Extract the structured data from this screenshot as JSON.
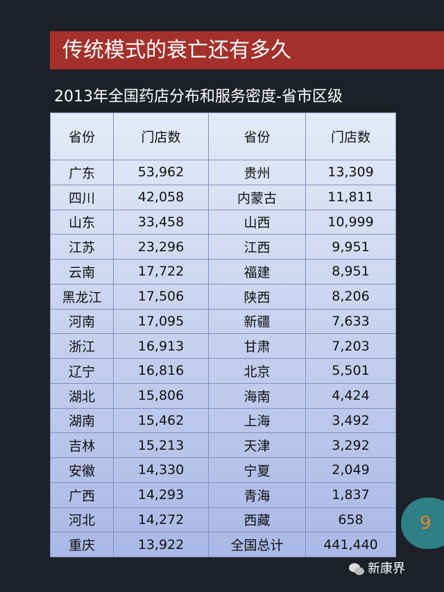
{
  "header": {
    "title": "传统模式的衰亡还有多久",
    "subtitle": "2013年全国药店分布和服务密度-省市区级"
  },
  "table": {
    "columns": [
      "省份",
      "门店数",
      "省份",
      "门店数"
    ],
    "rows": [
      [
        "广东",
        "53,962",
        "贵州",
        "13,309"
      ],
      [
        "四川",
        "42,058",
        "内蒙古",
        "11,811"
      ],
      [
        "山东",
        "33,458",
        "山西",
        "10,999"
      ],
      [
        "江苏",
        "23,296",
        "江西",
        "9,951"
      ],
      [
        "云南",
        "17,722",
        "福建",
        "8,951"
      ],
      [
        "黑龙江",
        "17,506",
        "陕西",
        "8,206"
      ],
      [
        "河南",
        "17,095",
        "新疆",
        "7,633"
      ],
      [
        "浙江",
        "16,913",
        "甘肃",
        "7,203"
      ],
      [
        "辽宁",
        "16,816",
        "北京",
        "5,501"
      ],
      [
        "湖北",
        "15,806",
        "海南",
        "4,424"
      ],
      [
        "湖南",
        "15,462",
        "上海",
        "3,492"
      ],
      [
        "吉林",
        "15,213",
        "天津",
        "3,292"
      ],
      [
        "安徽",
        "14,330",
        "宁夏",
        "2,049"
      ],
      [
        "广西",
        "14,293",
        "青海",
        "1,837"
      ],
      [
        "河北",
        "14,272",
        "西藏",
        "658"
      ],
      [
        "重庆",
        "13,922",
        "全国总计",
        "441,440"
      ]
    ]
  },
  "page_number": "9",
  "footer": {
    "brand": "新康界"
  }
}
